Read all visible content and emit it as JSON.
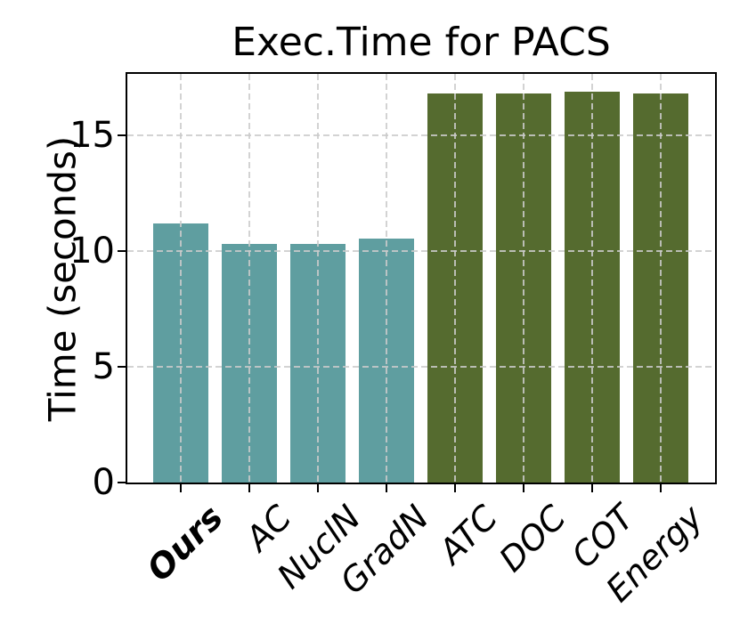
{
  "chart_data": {
    "type": "bar",
    "title": "Exec.Time for PACS",
    "xlabel": "",
    "ylabel": "Time (seconds)",
    "categories": [
      "Ours",
      "AC",
      "NuclN",
      "GradN",
      "ATC",
      "DOC",
      "COT",
      "Energy"
    ],
    "values": [
      11.2,
      10.3,
      10.3,
      10.55,
      16.8,
      16.8,
      16.9,
      16.8
    ],
    "bar_colors": [
      "#5f9ea0",
      "#5f9ea0",
      "#5f9ea0",
      "#5f9ea0",
      "#556b2f",
      "#556b2f",
      "#556b2f",
      "#556b2f"
    ],
    "emphasized_categories": [
      "Ours"
    ],
    "yticks": [
      0,
      5,
      10,
      15
    ],
    "ylim": [
      0,
      17.65
    ],
    "grid": true,
    "grid_style": "dashed",
    "grid_above_bars": true,
    "legend": "none",
    "x_tick_rotation_deg": 45,
    "x_tick_style": "italic",
    "colors": {
      "ours_group": "#5f9ea0",
      "baseline_group": "#556b2f",
      "grid": "#cbcbcb",
      "text": "#000000",
      "background": "#ffffff"
    }
  }
}
